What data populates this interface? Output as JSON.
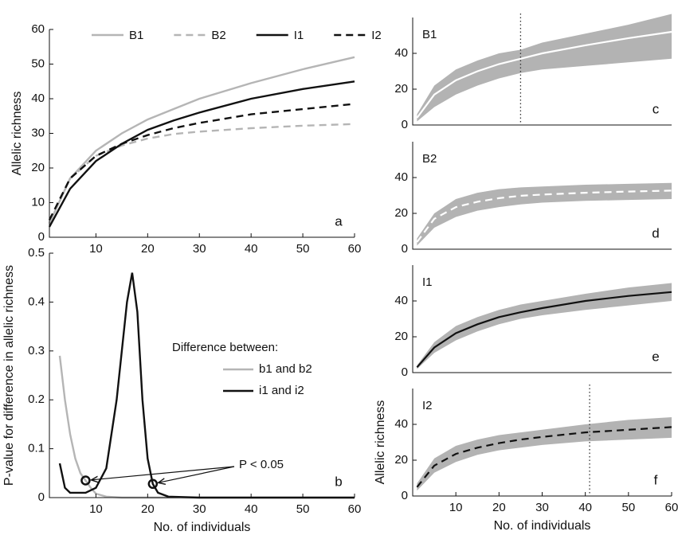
{
  "chart_data": [
    {
      "type": "line",
      "panel_label": "a",
      "ylabel": "Allelic richness",
      "legend": "top",
      "x": [
        1,
        5,
        10,
        15,
        20,
        25,
        30,
        40,
        50,
        60
      ],
      "xlim": [
        1,
        60
      ],
      "xticks": [
        10,
        20,
        30,
        40,
        50,
        60
      ],
      "ylim": [
        0,
        60
      ],
      "yticks": [
        0,
        10,
        20,
        30,
        40,
        50,
        60
      ],
      "series": [
        {
          "name": "B1",
          "color": "#b5b5b5",
          "style": "solid",
          "values": [
            4,
            17,
            25,
            30,
            34,
            37,
            40,
            44.5,
            48.5,
            52
          ]
        },
        {
          "name": "B2",
          "color": "#b5b5b5",
          "style": "dashed",
          "values": [
            4,
            17,
            23.5,
            26.5,
            28.5,
            29.8,
            30.5,
            31.5,
            32.2,
            32.7
          ]
        },
        {
          "name": "I1",
          "color": "#111111",
          "style": "solid",
          "values": [
            3,
            14,
            22,
            27,
            31,
            33.7,
            36,
            40,
            42.8,
            45
          ]
        },
        {
          "name": "I2",
          "color": "#111111",
          "style": "dashed",
          "values": [
            5,
            17,
            23.5,
            27,
            29.5,
            31.5,
            33,
            35.5,
            37,
            38.5
          ]
        }
      ]
    },
    {
      "type": "line",
      "panel_label": "b",
      "xlabel": "No. of individuals",
      "ylabel": "P-value for difference in allelic richness",
      "legend": "right",
      "legend_title": "Difference between:",
      "annotation": "P < 0.05",
      "xlim": [
        1,
        60
      ],
      "xticks": [
        10,
        20,
        30,
        40,
        50,
        60
      ],
      "ylim": [
        0,
        0.5
      ],
      "yticks": [
        0,
        0.1,
        0.2,
        0.3,
        0.4,
        0.5
      ],
      "highlight_points": [
        {
          "x": 8,
          "y": 0.035
        },
        {
          "x": 21,
          "y": 0.028
        }
      ],
      "series": [
        {
          "name": "b1 and b2",
          "color": "#b5b5b5",
          "style": "solid",
          "x": [
            3,
            4,
            5,
            6,
            7,
            8,
            9,
            10,
            12,
            15,
            30,
            60
          ],
          "values": [
            0.29,
            0.2,
            0.13,
            0.08,
            0.05,
            0.035,
            0.02,
            0.008,
            0.002,
            0,
            0,
            0
          ]
        },
        {
          "name": "i1 and i2",
          "color": "#111111",
          "style": "solid",
          "x": [
            3,
            4,
            5,
            8,
            10,
            12,
            14,
            16,
            17,
            18,
            19,
            20,
            21,
            22,
            24,
            30,
            60
          ],
          "values": [
            0.07,
            0.02,
            0.01,
            0.01,
            0.02,
            0.06,
            0.2,
            0.4,
            0.46,
            0.38,
            0.2,
            0.08,
            0.028,
            0.01,
            0.002,
            0,
            0
          ]
        }
      ]
    },
    {
      "type": "band",
      "title": "B1",
      "panel_label": "c",
      "x": [
        1,
        5,
        10,
        15,
        20,
        25,
        30,
        40,
        50,
        60
      ],
      "xlim": [
        0,
        60
      ],
      "ylim": [
        0,
        60
      ],
      "yticks": [
        0,
        20,
        40
      ],
      "band_color": "#b3b3b3",
      "line_color": "#ffffff",
      "style": "solid",
      "vline_x": 25,
      "values": [
        4,
        17,
        25,
        30,
        34,
        37,
        40,
        44.5,
        48.5,
        52
      ],
      "lower": [
        2,
        10,
        17,
        22,
        26,
        29,
        31,
        33,
        35,
        37
      ],
      "upper": [
        6,
        22,
        31,
        36,
        40,
        42,
        46,
        51,
        56,
        62
      ]
    },
    {
      "type": "band",
      "title": "B2",
      "panel_label": "d",
      "x": [
        1,
        5,
        10,
        15,
        20,
        25,
        30,
        40,
        50,
        60
      ],
      "xlim": [
        0,
        60
      ],
      "ylim": [
        0,
        60
      ],
      "yticks": [
        0,
        20,
        40
      ],
      "band_color": "#b3b3b3",
      "line_color": "#ffffff",
      "style": "dashed",
      "values": [
        4,
        17,
        23.5,
        26.5,
        28.5,
        29.8,
        30.5,
        31.5,
        32.2,
        32.7
      ],
      "lower": [
        2,
        12,
        18,
        21.5,
        23.5,
        25,
        26,
        27,
        27.5,
        28
      ],
      "upper": [
        6,
        20,
        28,
        31.5,
        33.5,
        34.5,
        35,
        36,
        36.5,
        37
      ]
    },
    {
      "type": "band",
      "title": "I1",
      "panel_label": "e",
      "x": [
        1,
        5,
        10,
        15,
        20,
        25,
        30,
        40,
        50,
        60
      ],
      "xlim": [
        0,
        60
      ],
      "ylim": [
        0,
        60
      ],
      "yticks": [
        0,
        20,
        40
      ],
      "band_color": "#b3b3b3",
      "line_color": "#111111",
      "style": "solid",
      "values": [
        3,
        14,
        22,
        27,
        31,
        33.7,
        36,
        40,
        42.8,
        45
      ],
      "lower": [
        2,
        11,
        18,
        23,
        27,
        30,
        32,
        35,
        37.5,
        40
      ],
      "upper": [
        4,
        17,
        26,
        31,
        35,
        38,
        40,
        44,
        47.5,
        50
      ]
    },
    {
      "type": "band",
      "title": "I2",
      "panel_label": "f",
      "x": [
        1,
        5,
        10,
        15,
        20,
        25,
        30,
        40,
        50,
        60
      ],
      "xlim": [
        0,
        60
      ],
      "xticks": [
        10,
        20,
        30,
        40,
        50,
        60
      ],
      "xlabel": "No. of individuals",
      "ylabel": "Allelic richness",
      "ylim": [
        0,
        60
      ],
      "yticks": [
        0,
        20,
        40
      ],
      "band_color": "#b3b3b3",
      "line_color": "#111111",
      "style": "dashed",
      "vline_x": 41,
      "values": [
        5,
        17,
        23.5,
        27,
        29.5,
        31.5,
        33,
        35.5,
        37,
        38.5
      ],
      "lower": [
        3,
        13,
        19,
        23,
        25.5,
        27,
        28.5,
        30.5,
        31.5,
        32.5
      ],
      "upper": [
        7,
        21,
        28,
        31.5,
        34,
        35.5,
        37,
        40,
        42.5,
        44
      ]
    }
  ]
}
